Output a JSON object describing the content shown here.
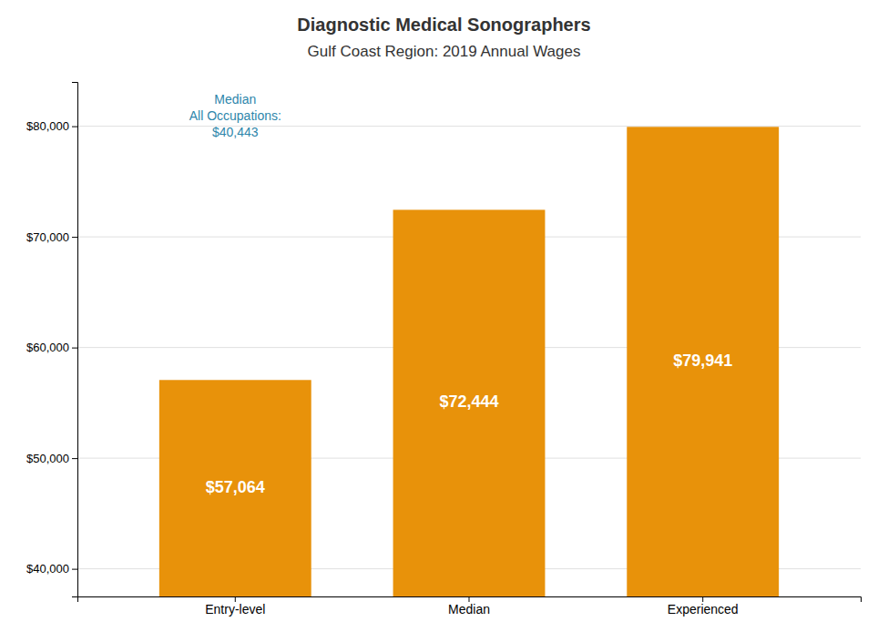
{
  "chart_data": {
    "type": "bar",
    "title": "Diagnostic Medical Sonographers",
    "subtitle": "Gulf Coast Region: 2019 Annual Wages",
    "categories": [
      "Entry-level",
      "Median",
      "Experienced"
    ],
    "values": [
      57064,
      72444,
      79941
    ],
    "value_labels": [
      "$57,064",
      "$72,444",
      "$79,941"
    ],
    "data_labels": true,
    "color": "#E8920A",
    "ylim": [
      37500,
      84000
    ],
    "yticks": [
      {
        "value": 40000,
        "label": "$40,000"
      },
      {
        "value": 50000,
        "label": "$50,000"
      },
      {
        "value": 60000,
        "label": "$60,000"
      },
      {
        "value": 70000,
        "label": "$70,000"
      },
      {
        "value": 80000,
        "label": "$80,000"
      }
    ],
    "grid": true,
    "annotations": [
      {
        "text": "Median\nAll Occupations:\n$40,443",
        "color": "#2E86AB"
      }
    ]
  }
}
